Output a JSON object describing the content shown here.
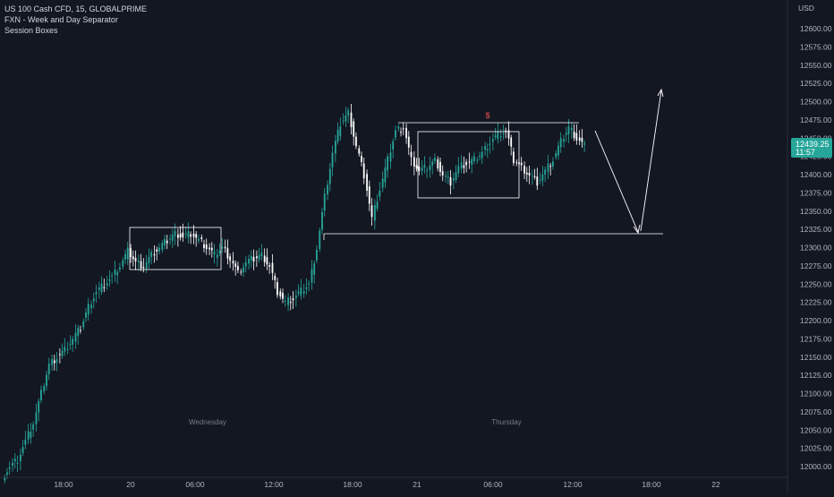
{
  "legend": {
    "symbol": "US 100 Cash CFD, 15, GLOBALPRIME",
    "indicator1": "FXN - Week and Day Separator",
    "indicator2": "Session Boxes"
  },
  "currency": "USD",
  "price_tag": {
    "price": "12439.25",
    "countdown": "11:57",
    "color": "#26a69a"
  },
  "box_marker": "$",
  "colors": {
    "bg": "#131722",
    "up": "#26a69a",
    "down": "#ffffff",
    "line": "#ffffff",
    "marker": "#ef5350"
  },
  "chart_data": {
    "type": "candlestick",
    "y_ticks": [
      "12600.00",
      "12575.00",
      "12550.00",
      "12525.00",
      "12500.00",
      "12475.00",
      "12450.00",
      "12425.00",
      "12400.00",
      "12375.00",
      "12350.00",
      "12325.00",
      "12300.00",
      "12275.00",
      "12250.00",
      "12225.00",
      "12200.00",
      "12175.00",
      "12150.00",
      "12125.00",
      "12100.00",
      "12075.00",
      "12050.00",
      "12025.00",
      "12000.00"
    ],
    "ylim": [
      11990,
      12620
    ],
    "x_ticks": [
      "18:00",
      "20",
      "06:00",
      "12:00",
      "18:00",
      "21",
      "06:00",
      "12:00",
      "18:00",
      "22"
    ],
    "day_labels": [
      "Wednesday",
      "Thursday"
    ],
    "close_series": [
      12000,
      12010,
      12035,
      12060,
      12100,
      12140,
      12150,
      12160,
      12175,
      12190,
      12220,
      12240,
      12250,
      12260,
      12275,
      12295,
      12280,
      12275,
      12290,
      12300,
      12310,
      12320,
      12315,
      12320,
      12310,
      12300,
      12290,
      12300,
      12285,
      12265,
      12280,
      12285,
      12290,
      12275,
      12240,
      12225,
      12230,
      12240,
      12250,
      12300,
      12370,
      12430,
      12470,
      12485,
      12440,
      12400,
      12340,
      12380,
      12420,
      12460,
      12465,
      12420,
      12405,
      12410,
      12420,
      12400,
      12390,
      12410,
      12415,
      12420,
      12430,
      12445,
      12455,
      12460,
      12420,
      12410,
      12400,
      12390,
      12405,
      12420,
      12445,
      12465,
      12450,
      12439.25
    ],
    "annotations": {
      "support_level": 12322,
      "range_high": 12470
    }
  }
}
